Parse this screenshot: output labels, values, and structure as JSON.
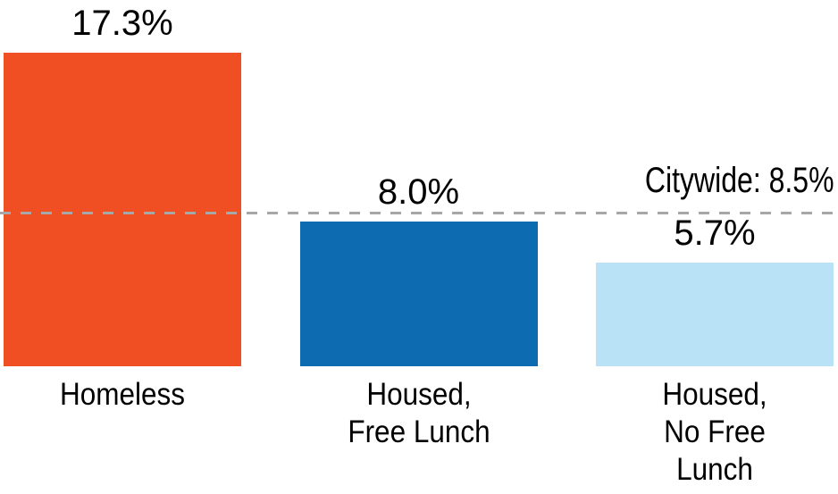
{
  "chart_data": {
    "type": "bar",
    "title": "",
    "xlabel": "",
    "ylabel": "",
    "categories": [
      "Homeless",
      "Housed,\nFree Lunch",
      "Housed,\nNo Free\nLunch"
    ],
    "values": [
      17.3,
      8.0,
      5.7
    ],
    "value_labels": [
      "17.3%",
      "8.0%",
      "5.7%"
    ],
    "bar_colors": [
      "#F04E23",
      "#0C6BB1",
      "#BAE2F6"
    ],
    "reference_line": {
      "value": 8.5,
      "label": "Citywide: 8.5%",
      "color": "#A6A7A9",
      "style": "dashed"
    },
    "ylim": [
      0,
      20
    ],
    "grid": false,
    "legend_position": "none",
    "text_color": "#000000",
    "background_color": "#FFFFFF"
  }
}
